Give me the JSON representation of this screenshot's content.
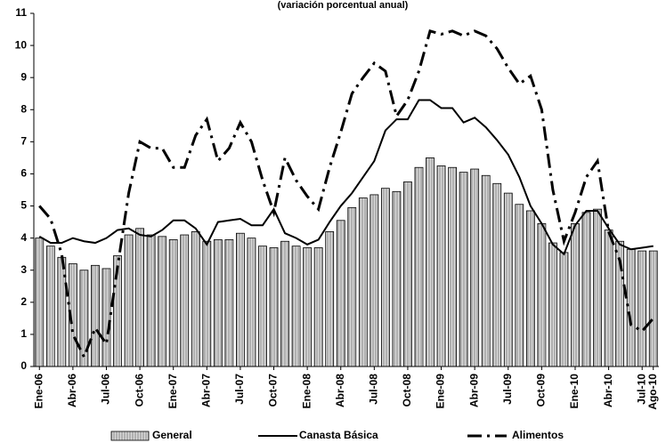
{
  "chart_data": {
    "type": "bar-line",
    "title": "(variación porcentual anual)",
    "categories": [
      "Ene-06",
      null,
      null,
      "Abr-06",
      null,
      null,
      "Jul-06",
      null,
      null,
      "Oct-06",
      null,
      null,
      "Ene-07",
      null,
      null,
      "Abr-07",
      null,
      null,
      "Jul-07",
      null,
      null,
      "Oct-07",
      null,
      null,
      "Ene-08",
      null,
      null,
      "Abr-08",
      null,
      null,
      "Jul-08",
      null,
      null,
      "Oct-08",
      null,
      null,
      "Ene-09",
      null,
      null,
      "Abr-09",
      null,
      null,
      "Jul-09",
      null,
      null,
      "Oct-09",
      null,
      null,
      "Ene-10",
      null,
      null,
      "Abr-10",
      null,
      null,
      "Jul-10",
      "Ago-10"
    ],
    "series": [
      {
        "name": "General",
        "kind": "bar",
        "color": "#b0b0b0",
        "values": [
          4.0,
          3.75,
          3.4,
          3.2,
          3.0,
          3.15,
          3.05,
          3.45,
          4.1,
          4.3,
          4.1,
          4.05,
          3.95,
          4.1,
          4.2,
          3.9,
          3.95,
          3.95,
          4.15,
          4.0,
          3.75,
          3.7,
          3.9,
          3.75,
          3.7,
          3.7,
          4.2,
          4.55,
          4.95,
          5.25,
          5.35,
          5.55,
          5.45,
          5.75,
          6.2,
          6.5,
          6.25,
          6.2,
          6.05,
          6.15,
          5.95,
          5.7,
          5.4,
          5.05,
          4.85,
          4.45,
          3.85,
          3.55,
          4.45,
          4.8,
          4.9,
          4.25,
          3.9,
          3.65,
          3.6,
          3.6
        ]
      },
      {
        "name": "Canasta Básica",
        "kind": "line",
        "color": "#000000",
        "values": [
          4.05,
          3.85,
          3.85,
          4.0,
          3.9,
          3.85,
          4.0,
          4.25,
          4.3,
          4.1,
          4.05,
          4.25,
          4.55,
          4.55,
          4.3,
          3.8,
          4.5,
          4.55,
          4.6,
          4.4,
          4.4,
          4.9,
          4.15,
          4.0,
          3.8,
          3.95,
          4.5,
          5.0,
          5.4,
          5.9,
          6.4,
          7.35,
          7.7,
          7.7,
          8.3,
          8.3,
          8.05,
          8.05,
          7.6,
          7.75,
          7.45,
          7.05,
          6.6,
          5.9,
          5.0,
          4.45,
          3.8,
          3.5,
          4.4,
          4.85,
          4.85,
          4.3,
          3.8,
          3.65,
          3.7,
          3.75
        ]
      },
      {
        "name": "Alimentos",
        "kind": "dashed-line",
        "color": "#000000",
        "values": [
          5.0,
          4.6,
          3.5,
          1.0,
          0.3,
          1.2,
          0.7,
          3.1,
          5.4,
          7.0,
          6.8,
          6.8,
          6.2,
          6.2,
          7.2,
          7.7,
          6.4,
          6.8,
          7.6,
          7.0,
          5.8,
          4.8,
          6.5,
          5.8,
          5.3,
          4.9,
          6.2,
          7.3,
          8.5,
          9.0,
          9.45,
          9.2,
          7.8,
          8.3,
          9.2,
          10.45,
          10.35,
          10.45,
          10.3,
          10.45,
          10.3,
          9.9,
          9.3,
          8.8,
          9.05,
          8.0,
          5.5,
          3.9,
          4.8,
          5.9,
          6.4,
          4.2,
          3.3,
          1.3,
          1.1,
          1.5
        ]
      }
    ],
    "ylim": [
      0,
      11
    ],
    "yticks": [
      0,
      1,
      2,
      3,
      4,
      5,
      6,
      7,
      8,
      9,
      10,
      11
    ]
  }
}
